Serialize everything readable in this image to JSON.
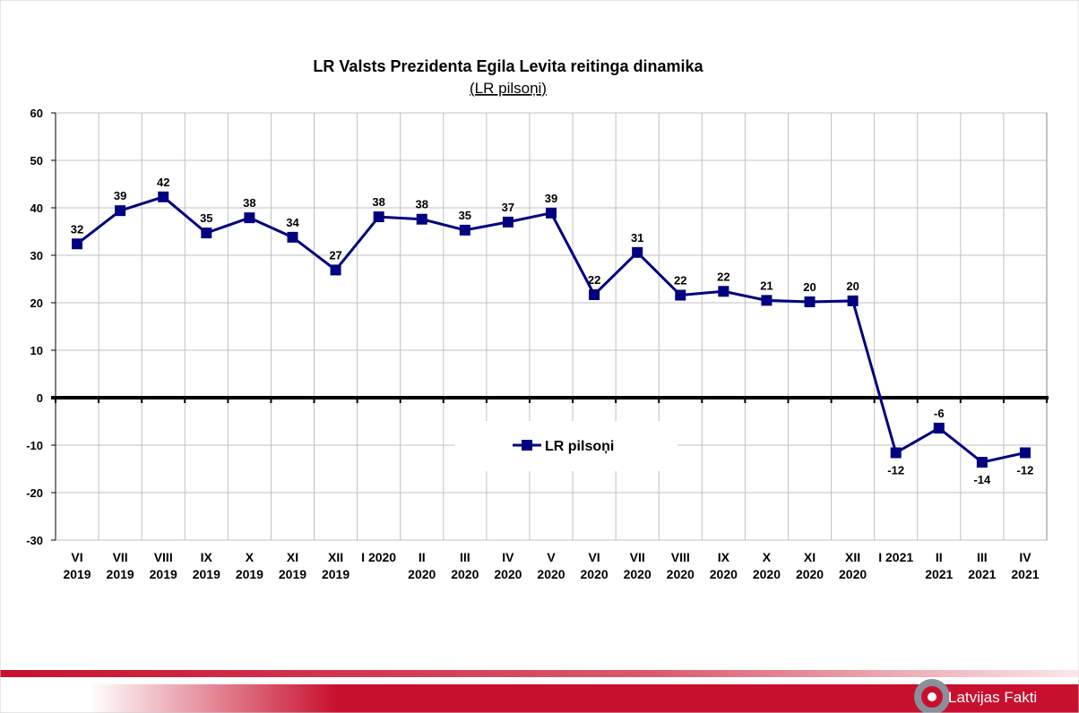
{
  "chart_data": {
    "type": "line",
    "title": "LR Valsts Prezidenta Egila Levita reitinga dinamika",
    "subtitle": "(LR pilsoņi)",
    "ylim": [
      -30,
      60
    ],
    "yticks": [
      60,
      50,
      40,
      30,
      20,
      10,
      0,
      -10,
      -20,
      -30
    ],
    "grid": true,
    "legend_position": "center-right",
    "categories": [
      [
        "VI",
        "2019"
      ],
      [
        "VII",
        "2019"
      ],
      [
        "VIII",
        "2019"
      ],
      [
        "IX",
        "2019"
      ],
      [
        "X",
        "2019"
      ],
      [
        "XI",
        "2019"
      ],
      [
        "XII",
        "2019"
      ],
      [
        "I 2020",
        ""
      ],
      [
        "II",
        "2020"
      ],
      [
        "III",
        "2020"
      ],
      [
        "IV",
        "2020"
      ],
      [
        "V",
        "2020"
      ],
      [
        "VI",
        "2020"
      ],
      [
        "VII",
        "2020"
      ],
      [
        "VIII",
        "2020"
      ],
      [
        "IX",
        "2020"
      ],
      [
        "X",
        "2020"
      ],
      [
        "XI",
        "2020"
      ],
      [
        "XII",
        "2020"
      ],
      [
        "I 2021",
        ""
      ],
      [
        "II",
        "2021"
      ],
      [
        "III",
        "2021"
      ],
      [
        "IV",
        "2021"
      ]
    ],
    "series": [
      {
        "name": "LR pilsoņi",
        "color": "#000080",
        "values": [
          32.4,
          39.4,
          42.3,
          34.7,
          37.9,
          33.8,
          26.9,
          38.1,
          37.6,
          35.3,
          37.0,
          38.9,
          21.7,
          30.6,
          21.6,
          22.4,
          20.5,
          20.2,
          20.4,
          -11.6,
          -6.4,
          -13.6,
          -11.6
        ],
        "labels": [
          "32",
          "39",
          "42",
          "35",
          "38",
          "34",
          "27",
          "38",
          "38",
          "35",
          "37",
          "39",
          "22",
          "31",
          "22",
          "22",
          "21",
          "20",
          "20",
          "-12",
          "-6",
          "-14",
          "-12"
        ]
      }
    ]
  },
  "footer": {
    "brand": "Latvijas Fakti",
    "accent_color": "#c8102e"
  }
}
